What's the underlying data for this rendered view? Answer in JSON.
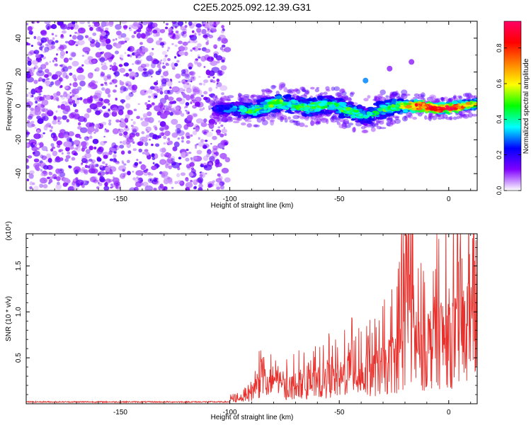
{
  "figure_title": "C2E5.2025.092.12.39.G31",
  "chart_data": [
    {
      "type": "heatmap",
      "title": "C2E5.2025.092.12.39.G31",
      "xlabel": "Height of straight line (km)",
      "ylabel": "Frequency (Hz)",
      "xlim": [
        -193,
        13
      ],
      "ylim": [
        -50,
        50
      ],
      "x_ticks": [
        -150,
        -100,
        -50,
        0
      ],
      "x_tick_labels": [
        "-150",
        "-100",
        "-50",
        "0"
      ],
      "y_ticks": [
        -40,
        -20,
        0,
        20,
        40
      ],
      "y_tick_labels": [
        "-40",
        "-20",
        "0",
        "20",
        "40"
      ],
      "colorbar": {
        "label": "Normalized spectral amplitude",
        "range": [
          0.0,
          0.95
        ],
        "ticks": [
          0.0,
          0.2,
          0.4,
          0.6,
          0.8
        ],
        "tick_labels": [
          "0.0",
          "0.2",
          "0.4",
          "0.6",
          "0.8"
        ],
        "colormap": [
          "#ffffff",
          "#8000ff",
          "#0000ff",
          "#00ffff",
          "#00ff00",
          "#ffff00",
          "#ff8000",
          "#ff0000",
          "#ff0066"
        ]
      },
      "noise_region": {
        "x_range": [
          -193,
          -101
        ],
        "freq_range": [
          -50,
          50
        ],
        "amplitude": 0.1
      },
      "signal_band": [
        {
          "x": -107,
          "center_hz": -2,
          "halfwidth_hz": 3,
          "amplitude": 0.2
        },
        {
          "x": -95,
          "center_hz": -2,
          "halfwidth_hz": 4,
          "amplitude": 0.3
        },
        {
          "x": -90,
          "center_hz": -3,
          "halfwidth_hz": 4,
          "amplitude": 0.4
        },
        {
          "x": -85,
          "center_hz": -1,
          "halfwidth_hz": 5,
          "amplitude": 0.35
        },
        {
          "x": -78,
          "center_hz": 2,
          "halfwidth_hz": 5,
          "amplitude": 0.45
        },
        {
          "x": -72,
          "center_hz": 1,
          "halfwidth_hz": 5,
          "amplitude": 0.35
        },
        {
          "x": -65,
          "center_hz": -1,
          "halfwidth_hz": 5,
          "amplitude": 0.4
        },
        {
          "x": -55,
          "center_hz": 1,
          "halfwidth_hz": 5,
          "amplitude": 0.35
        },
        {
          "x": -45,
          "center_hz": -3,
          "halfwidth_hz": 5,
          "amplitude": 0.4
        },
        {
          "x": -38,
          "center_hz": -6,
          "halfwidth_hz": 5,
          "amplitude": 0.3
        },
        {
          "x": -30,
          "center_hz": -2,
          "halfwidth_hz": 5,
          "amplitude": 0.4
        },
        {
          "x": -22,
          "center_hz": 0,
          "halfwidth_hz": 4,
          "amplitude": 0.45
        },
        {
          "x": -12,
          "center_hz": 0,
          "halfwidth_hz": 3,
          "amplitude": 0.8
        },
        {
          "x": -5,
          "center_hz": -2,
          "halfwidth_hz": 3,
          "amplitude": 0.75
        },
        {
          "x": 2,
          "center_hz": -1,
          "halfwidth_hz": 3,
          "amplitude": 0.7
        },
        {
          "x": 10,
          "center_hz": 1,
          "halfwidth_hz": 3,
          "amplitude": 0.5
        }
      ],
      "isolated_features": [
        {
          "x": -38,
          "y": 15,
          "amplitude": 0.3
        },
        {
          "x": -27,
          "y": 22,
          "amplitude": 0.1
        },
        {
          "x": -17,
          "y": 26,
          "amplitude": 0.1
        }
      ]
    },
    {
      "type": "line",
      "xlabel": "Height of straight line (km)",
      "ylabel": "SNR (10 * v/v)",
      "y_multiplier": "(x10⁴)",
      "xlim": [
        -193,
        13
      ],
      "ylim": [
        0,
        1.85
      ],
      "x_ticks": [
        -150,
        -100,
        -50,
        0
      ],
      "x_tick_labels": [
        "-150",
        "-100",
        "-50",
        "0"
      ],
      "y_ticks": [
        0.5,
        1.0,
        1.5
      ],
      "y_tick_labels": [
        "0.5",
        "1.0",
        "1.5"
      ],
      "color": "#e8312c",
      "x": [
        -193,
        -180,
        -160,
        -140,
        -120,
        -105,
        -95,
        -90,
        -87,
        -85,
        -82,
        -80,
        -75,
        -70,
        -65,
        -60,
        -55,
        -50,
        -45,
        -40,
        -35,
        -30,
        -25,
        -20,
        -18,
        -15,
        -10,
        -5,
        0,
        5,
        10,
        13
      ],
      "y": [
        0.02,
        0.02,
        0.02,
        0.02,
        0.02,
        0.03,
        0.07,
        0.18,
        0.35,
        0.45,
        0.2,
        0.4,
        0.25,
        0.3,
        0.3,
        0.32,
        0.4,
        0.38,
        0.55,
        0.45,
        0.5,
        0.55,
        0.7,
        0.9,
        1.75,
        0.8,
        0.95,
        1.05,
        1.1,
        1.05,
        1.3,
        1.45
      ]
    }
  ]
}
